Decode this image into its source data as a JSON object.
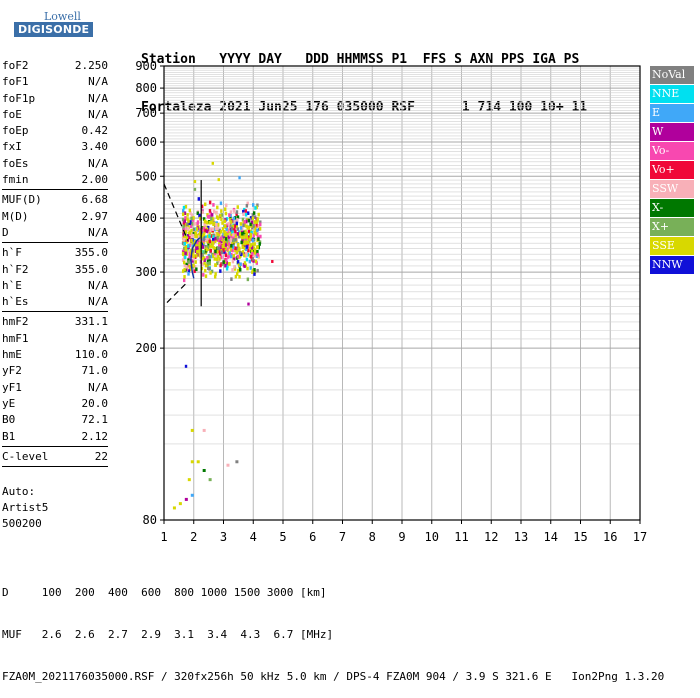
{
  "logo": {
    "line1": "Lowell",
    "line2": "DIGISONDE"
  },
  "header": {
    "labels": "Station   YYYY DAY   DDD HHMMSS P1  FFS S AXN PPS IGA PS",
    "values": "Fortaleza 2021 Jun25 176 035000 RSF      1 714 100 10+ 11"
  },
  "params": {
    "groups": [
      [
        {
          "name": "foF2",
          "value": "2.250"
        },
        {
          "name": "foF1",
          "value": "N/A"
        },
        {
          "name": "foF1p",
          "value": "N/A"
        },
        {
          "name": "foE",
          "value": "N/A"
        },
        {
          "name": "foEp",
          "value": "0.42"
        },
        {
          "name": "fxI",
          "value": "3.40"
        },
        {
          "name": "foEs",
          "value": "N/A"
        },
        {
          "name": "fmin",
          "value": "2.00"
        }
      ],
      [
        {
          "name": "MUF(D)",
          "value": "6.68"
        },
        {
          "name": "M(D)",
          "value": "2.97"
        },
        {
          "name": "D",
          "value": "N/A"
        }
      ],
      [
        {
          "name": "h`F",
          "value": "355.0"
        },
        {
          "name": "h`F2",
          "value": "355.0"
        },
        {
          "name": "h`E",
          "value": "N/A"
        },
        {
          "name": "h`Es",
          "value": "N/A"
        }
      ],
      [
        {
          "name": "hmF2",
          "value": "331.1"
        },
        {
          "name": "hmF1",
          "value": "N/A"
        },
        {
          "name": "hmE",
          "value": "110.0"
        },
        {
          "name": "yF2",
          "value": "71.0"
        },
        {
          "name": "yF1",
          "value": "N/A"
        },
        {
          "name": "yE",
          "value": "20.0"
        },
        {
          "name": "B0",
          "value": "72.1"
        },
        {
          "name": "B1",
          "value": "2.12"
        }
      ],
      [
        {
          "name": "C-level",
          "value": "22"
        }
      ]
    ]
  },
  "auto": {
    "line1": "Auto:",
    "line2": "Artist5",
    "line3": "500200"
  },
  "footer": {
    "d_line": "D     100  200  400  600  800 1000 1500 3000 [km]",
    "muf_line": "MUF   2.6  2.6  2.7  2.9  3.1  3.4  4.3  6.7 [MHz]",
    "info_line": "FZA0M_2021176035000.RSF / 320fx256h 50 kHz 5.0 km / DPS-4 FZA0M 904 / 3.9 S 321.6 E   Ion2Png 1.3.20"
  },
  "legend": [
    {
      "label": "NoVal",
      "color": "#808080"
    },
    {
      "label": "NNE",
      "color": "#00e0f0"
    },
    {
      "label": "E",
      "color": "#40a8f8"
    },
    {
      "label": "W",
      "color": "#b0009c"
    },
    {
      "label": "Vo-",
      "color": "#f848b0"
    },
    {
      "label": "Vo+",
      "color": "#f00838"
    },
    {
      "label": "SSW",
      "color": "#f8b0b8"
    },
    {
      "label": "X-",
      "color": "#007800"
    },
    {
      "label": "X+",
      "color": "#78b058"
    },
    {
      "label": "SSE",
      "color": "#d8d800"
    },
    {
      "label": "NNW",
      "color": "#1010d8"
    }
  ],
  "chart_data": {
    "type": "scatter",
    "title": "",
    "xlabel": "",
    "ylabel": "",
    "xlim": [
      1,
      17
    ],
    "ylim": [
      80,
      900
    ],
    "y_scale": "log",
    "grid": true,
    "x_ticks": [
      "1",
      "2",
      "3",
      "4",
      "5",
      "6",
      "7",
      "8",
      "9",
      "10",
      "11",
      "12",
      "13",
      "14",
      "15",
      "16",
      "17"
    ],
    "y_ticks": [
      "80",
      "200",
      "300",
      "400",
      "500",
      "600",
      "700",
      "800",
      "900"
    ],
    "legend_position": "right",
    "cluster_main": {
      "x_range": [
        1.6,
        4.2
      ],
      "y_range": [
        280,
        470
      ],
      "approx_points": 900
    },
    "sparse_upper": [
      [
        2.0,
        490
      ],
      [
        3.5,
        500
      ],
      [
        2.6,
        540
      ],
      [
        2.0,
        470
      ],
      [
        2.8,
        495
      ]
    ],
    "low_echoes": [
      [
        1.3,
        86
      ],
      [
        1.5,
        88
      ],
      [
        1.7,
        90
      ],
      [
        1.9,
        92
      ],
      [
        1.9,
        110
      ],
      [
        2.1,
        110
      ],
      [
        2.3,
        105
      ],
      [
        3.1,
        108
      ],
      [
        3.4,
        110
      ],
      [
        1.9,
        130
      ],
      [
        2.3,
        130
      ],
      [
        1.8,
        100
      ],
      [
        2.5,
        100
      ]
    ],
    "isolated": [
      [
        1.7,
        183
      ],
      [
        4.6,
        320
      ],
      [
        3.8,
        255
      ]
    ],
    "profile_line": {
      "x": [
        2.25,
        2.25
      ],
      "y": [
        250,
        490
      ]
    },
    "profile_curve": [
      [
        2.0,
        290
      ],
      [
        1.95,
        300
      ],
      [
        1.9,
        320
      ],
      [
        1.95,
        340
      ],
      [
        2.1,
        355
      ],
      [
        2.2,
        360
      ]
    ],
    "extrap_upper": [
      [
        1.0,
        480
      ],
      [
        1.8,
        355
      ]
    ],
    "extrap_lower": [
      [
        1.1,
        255
      ],
      [
        1.8,
        285
      ]
    ]
  }
}
